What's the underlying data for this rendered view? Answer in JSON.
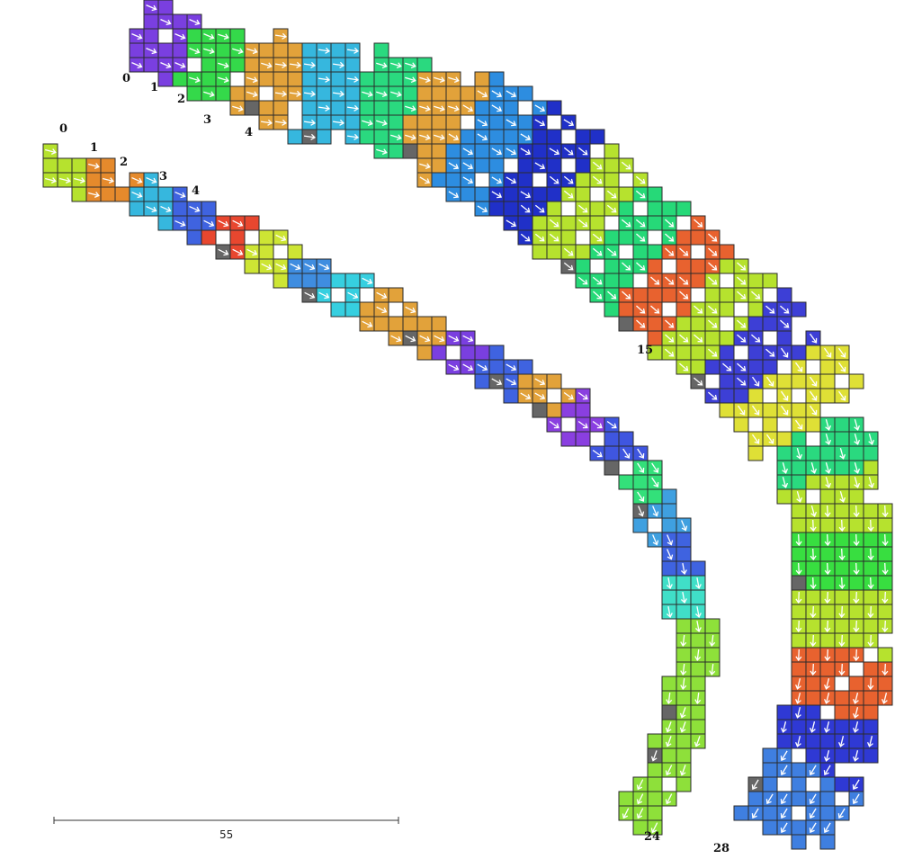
{
  "strip_a": {
    "labels": [
      "0",
      "1",
      "2",
      "3",
      "4",
      "15",
      "28"
    ],
    "segment_colors": [
      "#7a3fe0",
      "#34d94a",
      "#e2a23a",
      "#36b7de",
      "#2ad97f",
      "#e2a23a",
      "#2d8de0",
      "#2030c8",
      "#b6e22e",
      "#26d978",
      "#e8622f",
      "#b6e22e",
      "#3d3fd6",
      "#dfe036",
      "#2ad97f",
      "#b6e22e",
      "#38de40",
      "#b6e22e",
      "#e8622f",
      "#2f39d4",
      "#3f7fe0"
    ]
  },
  "strip_b": {
    "labels": [
      "0",
      "1",
      "2",
      "3",
      "4",
      "24"
    ],
    "segment_colors": [
      "#b6e22e",
      "#e58a2c",
      "#36b7de",
      "#3f63e0",
      "#e8472f",
      "#cde534",
      "#3f8de0",
      "#36cfe0",
      "#e2a23a",
      "#e2a23a",
      "#7a3fe0",
      "#3f63e0",
      "#e2a23a",
      "#8a3fe0",
      "#3f56e0",
      "#33e07a",
      "#3fa0e0",
      "#3f63e0",
      "#40dfc8",
      "#8ee03a"
    ]
  },
  "scale_bar": {
    "label": "55"
  },
  "colors": {
    "cell_border": "#2b2b2b",
    "cap_gray": "#666666",
    "arrow": "#ffffff"
  }
}
